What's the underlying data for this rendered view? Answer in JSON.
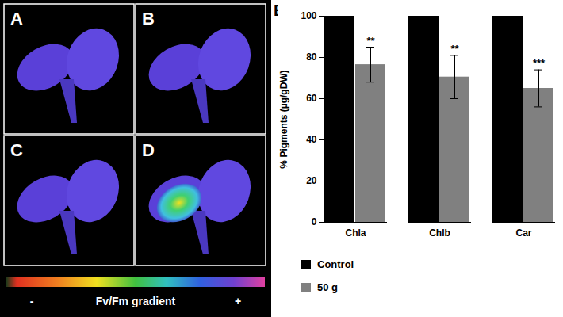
{
  "panels": {
    "labels": [
      "A",
      "B",
      "C",
      "D"
    ],
    "colorbar": {
      "label": "Fv/Fm gradient",
      "low": "-",
      "high": "+"
    }
  },
  "chart_data": {
    "type": "bar",
    "panel_label": "E",
    "categories": [
      "Chla",
      "Chlb",
      "Car"
    ],
    "series": [
      {
        "name": "Control",
        "color": "#000000",
        "values": [
          100,
          100,
          100
        ]
      },
      {
        "name": "50 g",
        "color": "#808080",
        "values": [
          76.5,
          70.5,
          65
        ],
        "errors": [
          8.5,
          10.5,
          9
        ],
        "annotations": [
          "**",
          "**",
          "***"
        ]
      }
    ],
    "ylabel": "% Pigments (µg/gDW)",
    "ylim": [
      0,
      100
    ],
    "yticks": [
      0,
      20,
      40,
      60,
      80,
      100
    ],
    "legend": "bottom",
    "grid": false
  }
}
